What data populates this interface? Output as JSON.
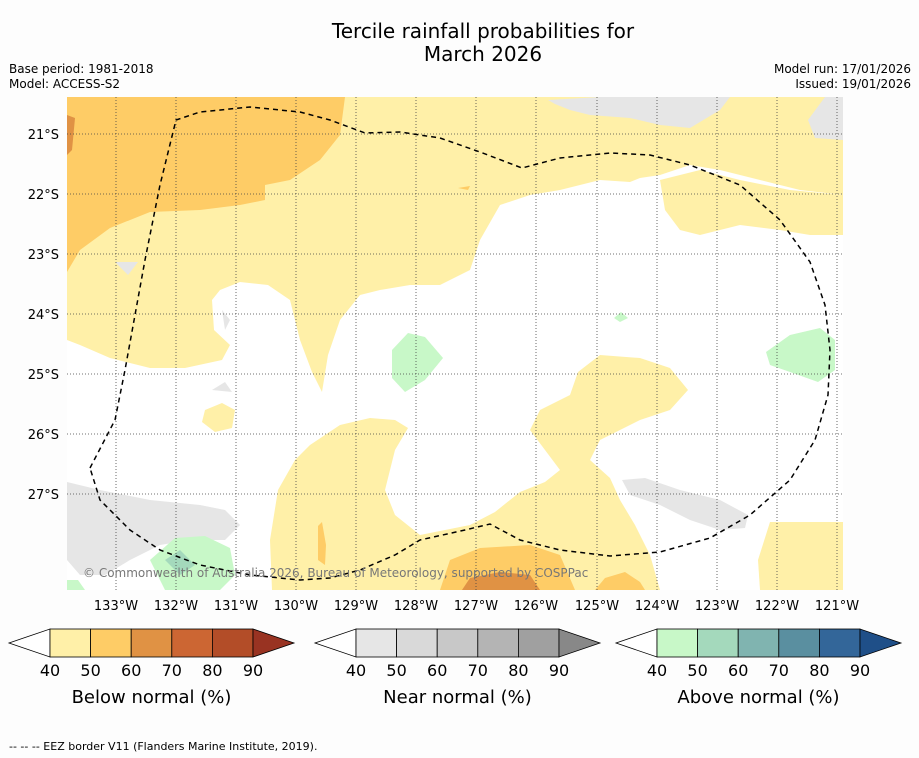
{
  "title_line1": "Tercile rainfall probabilities for",
  "title_line2": "March 2026",
  "meta": {
    "base_period": "Base period: 1981-2018",
    "model": "Model: ACCESS-S2",
    "model_run": "Model run: 17/01/2026",
    "issued": "Issued: 19/01/2026"
  },
  "copyright": "© Commonwealth of Australia 2026, Bureau of Meteorology, supported by COSPPac",
  "chart_data": {
    "type": "heatmap",
    "title": "Tercile rainfall probabilities for March 2026",
    "x_ticks": [
      "133°W",
      "132°W",
      "131°W",
      "130°W",
      "129°W",
      "128°W",
      "127°W",
      "126°W",
      "125°W",
      "124°W",
      "123°W",
      "122°W",
      "121°W"
    ],
    "y_ticks": [
      "21°S",
      "22°S",
      "23°S",
      "24°S",
      "25°S",
      "26°S",
      "27°S"
    ],
    "xlim": [
      -133.8,
      -120.9
    ],
    "ylim": [
      -28.6,
      -20.4
    ],
    "colorbars": [
      {
        "name": "Below normal (%)",
        "ticks": [
          "40",
          "50",
          "60",
          "70",
          "80",
          "90"
        ],
        "colors": [
          "#fff0a8",
          "#fecc66",
          "#e09244",
          "#cc6633",
          "#b34d28",
          "#993322"
        ]
      },
      {
        "name": "Near normal (%)",
        "ticks": [
          "40",
          "50",
          "60",
          "70",
          "80",
          "90"
        ],
        "colors": [
          "#e6e6e6",
          "#d9d9d9",
          "#c8c8c8",
          "#b4b4b4",
          "#a0a0a0",
          "#888888"
        ]
      },
      {
        "name": "Above normal (%)",
        "ticks": [
          "40",
          "50",
          "60",
          "70",
          "80",
          "90"
        ],
        "colors": [
          "#c8f8c8",
          "#a4d9bc",
          "#80b4b0",
          "#5a8fa0",
          "#336699",
          "#1f4f88"
        ]
      }
    ]
  },
  "footer": "--  --  -- EEZ border V11 (Flanders Marine Institute, 2019)."
}
